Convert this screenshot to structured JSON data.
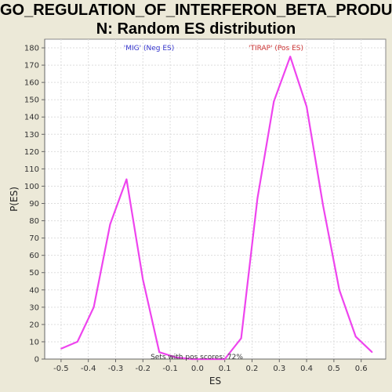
{
  "chart_data": {
    "type": "line",
    "title_line_1": "GO_REGULATION_OF_INTERFERON_BETA_PRODUCTIO",
    "title_line_2": "N: Random ES distribution",
    "xlabel": "ES",
    "ylabel": "P(ES)",
    "xlim": [
      -0.56,
      0.69
    ],
    "ylim": [
      0,
      185
    ],
    "x_ticks": [
      -0.5,
      -0.4,
      -0.3,
      -0.2,
      -0.1,
      0.0,
      0.1,
      0.2,
      0.3,
      0.4,
      0.5,
      0.6
    ],
    "x_tick_labels": [
      "-0.5",
      "-0.4",
      "-0.3",
      "-0.2",
      "-0.1",
      "0.0",
      "0.1",
      "0.2",
      "0.3",
      "0.4",
      "0.5",
      "0.6"
    ],
    "y_ticks": [
      0,
      10,
      20,
      30,
      40,
      50,
      60,
      70,
      80,
      90,
      100,
      110,
      120,
      130,
      140,
      150,
      160,
      170,
      180
    ],
    "grid": true,
    "series": [
      {
        "name": "Random ES distribution",
        "color": "#ee44ee",
        "x": [
          -0.5,
          -0.44,
          -0.38,
          -0.32,
          -0.26,
          -0.2,
          -0.14,
          -0.08,
          -0.02,
          0.04,
          0.1,
          0.16,
          0.22,
          0.28,
          0.34,
          0.4,
          0.46,
          0.52,
          0.58,
          0.64
        ],
        "y": [
          6,
          10,
          30,
          78,
          104,
          46,
          4,
          1,
          0,
          0,
          0,
          12,
          93,
          149,
          175,
          146,
          89,
          40,
          13,
          4
        ]
      }
    ],
    "annotations": {
      "neg_label": "'MIG' (Neg ES)",
      "neg_color": "#3333cc",
      "pos_label": "'TIRAP' (Pos ES)",
      "pos_color": "#cc3333",
      "sets_text": "Sets with pos scores: 72%"
    }
  }
}
